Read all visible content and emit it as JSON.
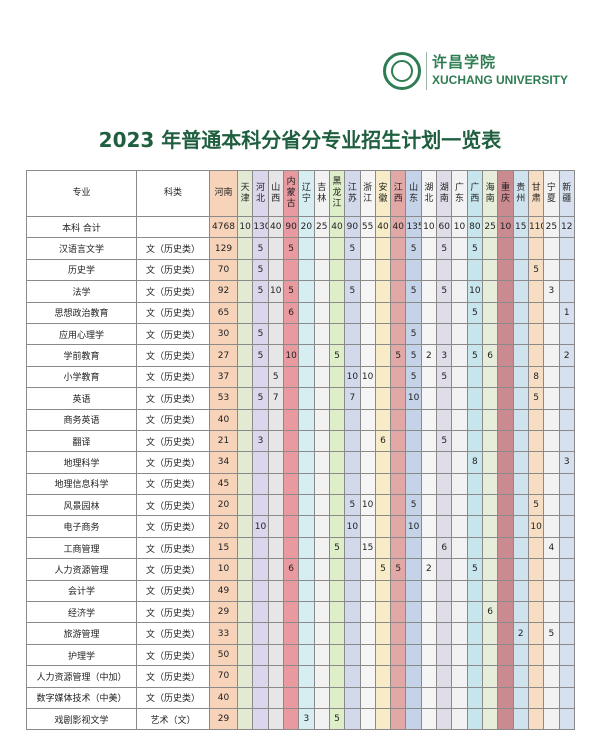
{
  "header": {
    "school_cn": "许昌学院",
    "school_en": "XUCHANG UNIVERSITY",
    "title": "2023 年普通本科分省分专业招生计划一览表"
  },
  "table": {
    "col_major": "专业",
    "col_category": "科类",
    "provinces": [
      {
        "name": "河南",
        "color": "#f7d3b9"
      },
      {
        "name": "天津",
        "color": "#e3ead4"
      },
      {
        "name": "河北",
        "color": "#dcd6ec"
      },
      {
        "name": "山西",
        "color": "#e6e6e6"
      },
      {
        "name": "内蒙古",
        "color": "#e99aa0"
      },
      {
        "name": "辽宁",
        "color": "#d6eef2"
      },
      {
        "name": "吉林",
        "color": "#f2f2f2"
      },
      {
        "name": "黑龙江",
        "color": "#ddeec9"
      },
      {
        "name": "江苏",
        "color": "#d1d9ea"
      },
      {
        "name": "浙江",
        "color": "#f5f5f5"
      },
      {
        "name": "安徽",
        "color": "#f7ecc7"
      },
      {
        "name": "江西",
        "color": "#e2a8a6"
      },
      {
        "name": "山东",
        "color": "#c5d3e8"
      },
      {
        "name": "湖北",
        "color": "#f5f5f5"
      },
      {
        "name": "湖南",
        "color": "#e0dce8"
      },
      {
        "name": "广东",
        "color": "#f2f2f2"
      },
      {
        "name": "广西",
        "color": "#c7e5ec"
      },
      {
        "name": "海南",
        "color": "#e6eeda"
      },
      {
        "name": "重庆",
        "color": "#c98a90"
      },
      {
        "name": "贵州",
        "color": "#cfe3ef"
      },
      {
        "name": "甘肃",
        "color": "#f7ddc4"
      },
      {
        "name": "宁夏",
        "color": "#f2f2f2"
      },
      {
        "name": "新疆",
        "color": "#d7e0ee"
      }
    ],
    "rows": [
      {
        "major": "本科  合计",
        "category": "",
        "values": [
          "4768",
          "10",
          "130",
          "40",
          "90",
          "20",
          "25",
          "40",
          "90",
          "55",
          "40",
          "40",
          "135",
          "10",
          "60",
          "10",
          "80",
          "25",
          "10",
          "15",
          "110",
          "25",
          "12"
        ]
      },
      {
        "major": "汉语言文学",
        "category": "文（历史类）",
        "values": [
          "129",
          "",
          "5",
          "",
          "5",
          "",
          "",
          "",
          "5",
          "",
          "",
          "",
          "5",
          "",
          "5",
          "",
          "5",
          "",
          "",
          "",
          "",
          "",
          ""
        ]
      },
      {
        "major": "历史学",
        "category": "文（历史类）",
        "values": [
          "70",
          "",
          "5",
          "",
          "",
          "",
          "",
          "",
          "",
          "",
          "",
          "",
          "",
          "",
          "",
          "",
          "",
          "",
          "",
          "",
          "5",
          "",
          ""
        ]
      },
      {
        "major": "法学",
        "category": "文（历史类）",
        "values": [
          "92",
          "",
          "5",
          "10",
          "5",
          "",
          "",
          "",
          "5",
          "",
          "",
          "",
          "5",
          "",
          "5",
          "",
          "10",
          "",
          "",
          "",
          "",
          "3",
          ""
        ]
      },
      {
        "major": "思想政治教育",
        "category": "文（历史类）",
        "values": [
          "65",
          "",
          "",
          "",
          "6",
          "",
          "",
          "",
          "",
          "",
          "",
          "",
          "",
          "",
          "",
          "",
          "5",
          "",
          "",
          "",
          "",
          "",
          "1"
        ]
      },
      {
        "major": "应用心理学",
        "category": "文（历史类）",
        "values": [
          "30",
          "",
          "5",
          "",
          "",
          "",
          "",
          "",
          "",
          "",
          "",
          "",
          "5",
          "",
          "",
          "",
          "",
          "",
          "",
          "",
          "",
          "",
          ""
        ]
      },
      {
        "major": "学前教育",
        "category": "文（历史类）",
        "values": [
          "27",
          "",
          "5",
          "",
          "10",
          "",
          "",
          "5",
          "",
          "",
          "",
          "5",
          "5",
          "2",
          "3",
          "",
          "5",
          "6",
          "",
          "",
          "",
          "",
          "2"
        ]
      },
      {
        "major": "小学教育",
        "category": "文（历史类）",
        "values": [
          "37",
          "",
          "",
          "5",
          "",
          "",
          "",
          "",
          "10",
          "10",
          "",
          "",
          "5",
          "",
          "5",
          "",
          "",
          "",
          "",
          "",
          "8",
          "",
          ""
        ]
      },
      {
        "major": "英语",
        "category": "文（历史类）",
        "values": [
          "53",
          "",
          "5",
          "7",
          "",
          "",
          "",
          "",
          "7",
          "",
          "",
          "",
          "10",
          "",
          "",
          "",
          "",
          "",
          "",
          "",
          "5",
          "",
          ""
        ]
      },
      {
        "major": "商务英语",
        "category": "文（历史类）",
        "values": [
          "40",
          "",
          "",
          "",
          "",
          "",
          "",
          "",
          "",
          "",
          "",
          "",
          "",
          "",
          "",
          "",
          "",
          "",
          "",
          "",
          "",
          "",
          ""
        ]
      },
      {
        "major": "翻译",
        "category": "文（历史类）",
        "values": [
          "21",
          "",
          "3",
          "",
          "",
          "",
          "",
          "",
          "",
          "",
          "6",
          "",
          "",
          "",
          "5",
          "",
          "",
          "",
          "",
          "",
          "",
          "",
          ""
        ]
      },
      {
        "major": "地理科学",
        "category": "文（历史类）",
        "values": [
          "34",
          "",
          "",
          "",
          "",
          "",
          "",
          "",
          "",
          "",
          "",
          "",
          "",
          "",
          "",
          "",
          "8",
          "",
          "",
          "",
          "",
          "",
          "3"
        ]
      },
      {
        "major": "地理信息科学",
        "category": "文（历史类）",
        "values": [
          "45",
          "",
          "",
          "",
          "",
          "",
          "",
          "",
          "",
          "",
          "",
          "",
          "",
          "",
          "",
          "",
          "",
          "",
          "",
          "",
          "",
          "",
          ""
        ]
      },
      {
        "major": "风景园林",
        "category": "文（历史类）",
        "values": [
          "20",
          "",
          "",
          "",
          "",
          "",
          "",
          "",
          "5",
          "10",
          "",
          "",
          "5",
          "",
          "",
          "",
          "",
          "",
          "",
          "",
          "5",
          "",
          ""
        ]
      },
      {
        "major": "电子商务",
        "category": "文（历史类）",
        "values": [
          "20",
          "",
          "10",
          "",
          "",
          "",
          "",
          "",
          "10",
          "",
          "",
          "",
          "10",
          "",
          "",
          "",
          "",
          "",
          "",
          "",
          "10",
          "",
          ""
        ]
      },
      {
        "major": "工商管理",
        "category": "文（历史类）",
        "values": [
          "15",
          "",
          "",
          "",
          "",
          "",
          "",
          "5",
          "",
          "15",
          "",
          "",
          "",
          "",
          "6",
          "",
          "",
          "",
          "",
          "",
          "",
          "4",
          ""
        ]
      },
      {
        "major": "人力资源管理",
        "category": "文（历史类）",
        "values": [
          "10",
          "",
          "",
          "",
          "6",
          "",
          "",
          "",
          "",
          "",
          "5",
          "5",
          "",
          "2",
          "",
          "",
          "5",
          "",
          "",
          "",
          "",
          "",
          ""
        ]
      },
      {
        "major": "会计学",
        "category": "文（历史类）",
        "values": [
          "49",
          "",
          "",
          "",
          "",
          "",
          "",
          "",
          "",
          "",
          "",
          "",
          "",
          "",
          "",
          "",
          "",
          "",
          "",
          "",
          "",
          "",
          ""
        ]
      },
      {
        "major": "经济学",
        "category": "文（历史类）",
        "values": [
          "29",
          "",
          "",
          "",
          "",
          "",
          "",
          "",
          "",
          "",
          "",
          "",
          "",
          "",
          "",
          "",
          "",
          "6",
          "",
          "",
          "",
          "",
          ""
        ]
      },
      {
        "major": "旅游管理",
        "category": "文（历史类）",
        "values": [
          "33",
          "",
          "",
          "",
          "",
          "",
          "",
          "",
          "",
          "",
          "",
          "",
          "",
          "",
          "",
          "",
          "",
          "",
          "",
          "2",
          "",
          "5",
          ""
        ]
      },
      {
        "major": "护理学",
        "category": "文（历史类）",
        "values": [
          "50",
          "",
          "",
          "",
          "",
          "",
          "",
          "",
          "",
          "",
          "",
          "",
          "",
          "",
          "",
          "",
          "",
          "",
          "",
          "",
          "",
          "",
          ""
        ]
      },
      {
        "major": "人力资源管理（中加）",
        "category": "文（历史类）",
        "values": [
          "70",
          "",
          "",
          "",
          "",
          "",
          "",
          "",
          "",
          "",
          "",
          "",
          "",
          "",
          "",
          "",
          "",
          "",
          "",
          "",
          "",
          "",
          ""
        ]
      },
      {
        "major": "数字媒体技术（中美）",
        "category": "文（历史类）",
        "values": [
          "40",
          "",
          "",
          "",
          "",
          "",
          "",
          "",
          "",
          "",
          "",
          "",
          "",
          "",
          "",
          "",
          "",
          "",
          "",
          "",
          "",
          "",
          ""
        ]
      },
      {
        "major": "戏剧影视文学",
        "category": "艺术（文）",
        "values": [
          "29",
          "",
          "",
          "",
          "",
          "3",
          "",
          "5",
          "",
          "",
          "",
          "",
          "",
          "",
          "",
          "",
          "",
          "",
          "",
          "",
          "",
          "",
          ""
        ]
      }
    ]
  }
}
